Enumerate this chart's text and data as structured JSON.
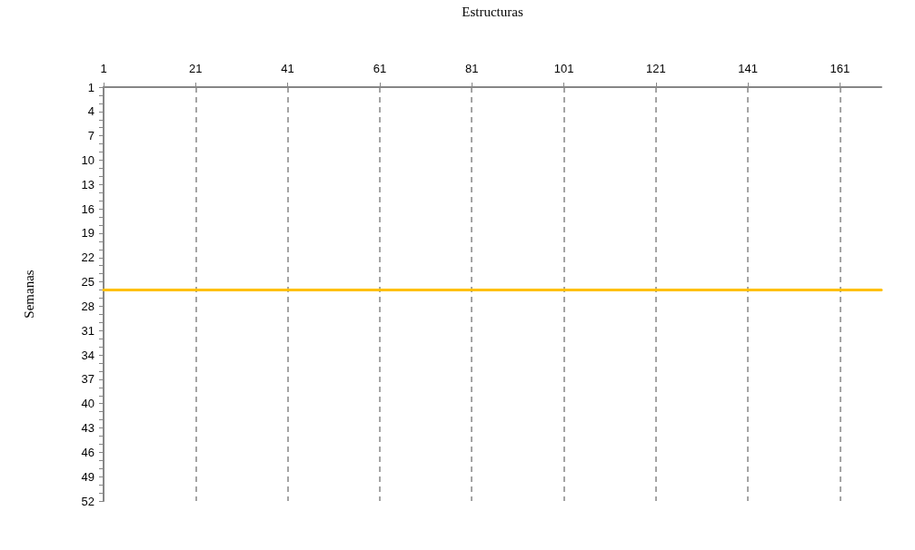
{
  "chart_data": {
    "type": "line",
    "xlabel": "Estructuras",
    "ylabel": "Semanas",
    "x": [
      1,
      170
    ],
    "series": [
      {
        "color": "#ffc000",
        "values": [
          26,
          26
        ]
      }
    ],
    "xlim": [
      1,
      170
    ],
    "xticks": [
      1,
      21,
      41,
      61,
      81,
      101,
      121,
      141,
      161
    ],
    "ylim": [
      52,
      1
    ],
    "yticks": [
      1,
      {
        "value": 2,
        "label": null
      },
      {
        "value": 3,
        "label": null
      },
      4,
      {
        "value": 5,
        "label": null
      },
      {
        "value": 6,
        "label": null
      },
      7,
      {
        "value": 8,
        "label": null
      },
      {
        "value": 9,
        "label": null
      },
      10,
      {
        "value": 11,
        "label": null
      },
      {
        "value": 12,
        "label": null
      },
      13,
      {
        "value": 14,
        "label": null
      },
      {
        "value": 15,
        "label": null
      },
      16,
      {
        "value": 17,
        "label": null
      },
      {
        "value": 18,
        "label": null
      },
      19,
      {
        "value": 20,
        "label": null
      },
      {
        "value": 21,
        "label": null
      },
      22,
      {
        "value": 23,
        "label": null
      },
      {
        "value": 24,
        "label": null
      },
      25,
      {
        "value": 26,
        "label": null
      },
      {
        "value": 27,
        "label": null
      },
      28,
      {
        "value": 29,
        "label": null
      },
      {
        "value": 30,
        "label": null
      },
      31,
      {
        "value": 32,
        "label": null
      },
      {
        "value": 33,
        "label": null
      },
      34,
      {
        "value": 35,
        "label": null
      },
      {
        "value": 36,
        "label": null
      },
      37,
      {
        "value": 38,
        "label": null
      },
      {
        "value": 39,
        "label": null
      },
      40,
      {
        "value": 41,
        "label": null
      },
      {
        "value": 42,
        "label": null
      },
      43,
      {
        "value": 44,
        "label": null
      },
      {
        "value": 45,
        "label": null
      },
      46,
      {
        "value": 47,
        "label": null
      },
      {
        "value": 48,
        "label": null
      },
      49,
      {
        "value": 50,
        "label": null
      },
      {
        "value": 51,
        "label": null
      },
      52
    ],
    "grid": "x",
    "marker": "none",
    "line_style": "solid"
  }
}
